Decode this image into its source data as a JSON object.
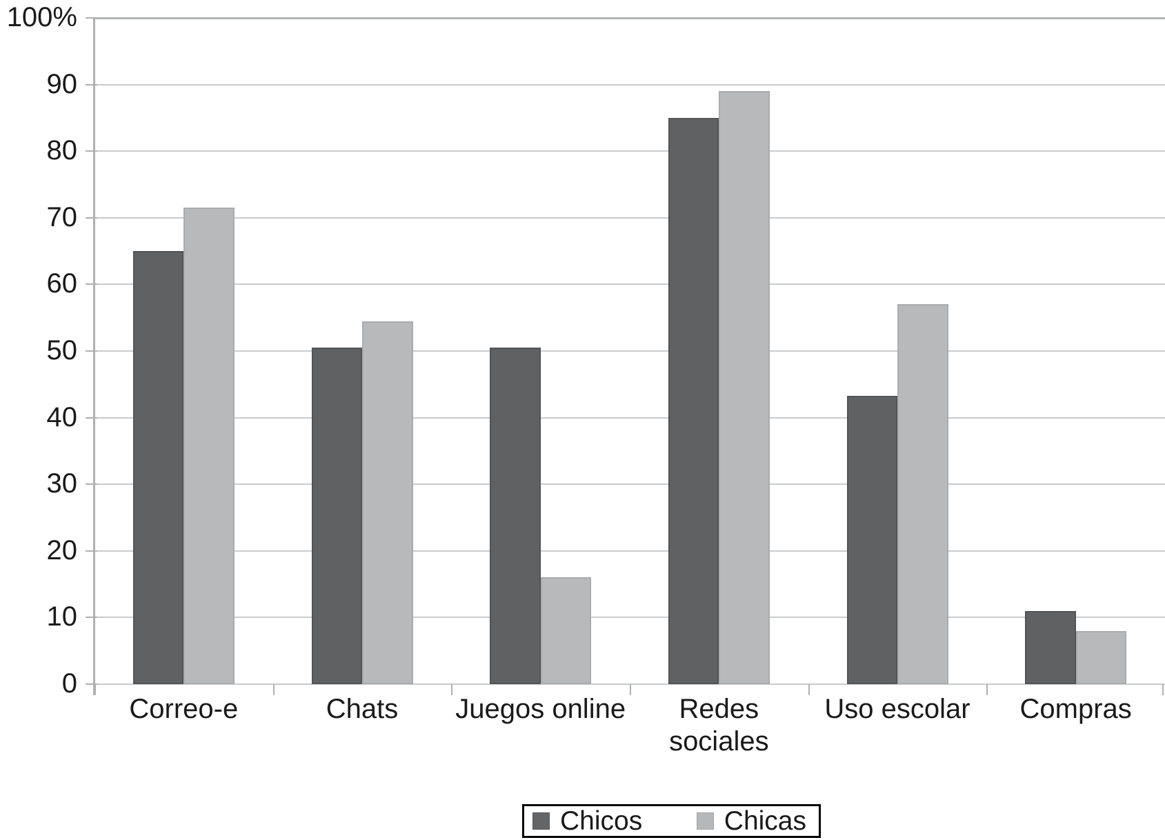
{
  "chart_data": {
    "type": "bar",
    "title": "",
    "categories": [
      "Correo-e",
      "Chats",
      "Juegos online",
      "Redes\nsociales",
      "Uso escolar",
      "Compras"
    ],
    "series": [
      {
        "name": "Chicos",
        "color": "#5f6163",
        "values": [
          65,
          50.5,
          50.5,
          85,
          43.3,
          11
        ]
      },
      {
        "name": "Chicas",
        "color": "#b7b9bb",
        "values": [
          71.5,
          54.5,
          16,
          89,
          57,
          8
        ]
      }
    ],
    "y_axis": {
      "min": 0,
      "max": 100,
      "step": 10,
      "tick_labels": [
        "0",
        "10",
        "20",
        "30",
        "40",
        "50",
        "60",
        "70",
        "80",
        "90",
        "100%"
      ]
    },
    "xlabel": "",
    "ylabel": "",
    "grid": true,
    "legend_position": "bottom"
  },
  "colors": {
    "bar_dark": "#5f6163",
    "bar_light": "#b7b9bb",
    "gridline": "#c9cbcc",
    "axis": "#aeb0b2",
    "text": "#1a1a1a",
    "legend_border": "#000000",
    "background": "#ffffff"
  }
}
